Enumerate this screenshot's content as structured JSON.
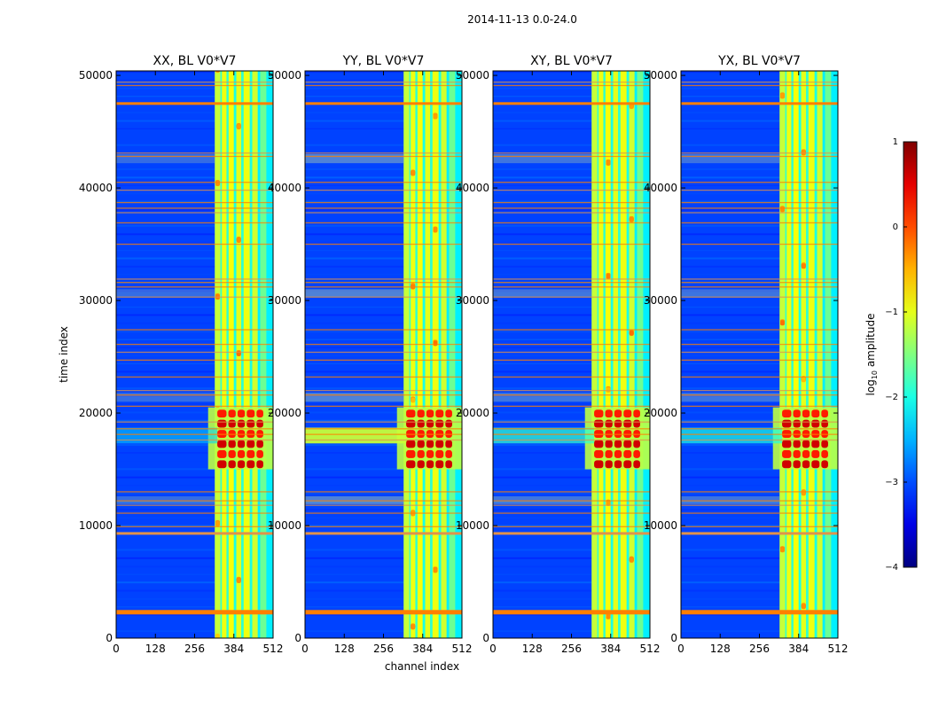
{
  "chart_data": {
    "type": "heatmap",
    "suptitle": "2014-11-13 0.0-24.0",
    "xlabel": "channel index",
    "ylabel": "time index",
    "xlim": [
      0,
      512
    ],
    "ylim": [
      0,
      50400
    ],
    "x_ticks": [
      "0",
      "128",
      "256",
      "384",
      "512"
    ],
    "y_ticks": [
      "0",
      "10000",
      "20000",
      "30000",
      "40000",
      "50000"
    ],
    "x_tick_values": [
      0,
      128,
      256,
      384,
      512
    ],
    "y_tick_values": [
      0,
      10000,
      20000,
      30000,
      40000,
      50000
    ],
    "panels": [
      {
        "name": "XX",
        "title": "XX, BL V0*V7",
        "low_band_strength": 0.35
      },
      {
        "name": "YY",
        "title": "YY, BL V0*V7",
        "low_band_strength": 1.0
      },
      {
        "name": "XY",
        "title": "XY, BL V0*V7",
        "low_band_strength": 0.6
      },
      {
        "name": "YX",
        "title": "YX, BL V0*V7",
        "low_band_strength": 0.55
      }
    ],
    "active_channel_range": [
      322,
      512
    ],
    "bright_time_range": [
      15000,
      20500
    ],
    "horizontal_flag_lines": [
      2300,
      9300,
      9900,
      11100,
      11800,
      12200,
      13000,
      17600,
      18100,
      18600,
      19200,
      20600,
      21600,
      22000,
      23200,
      24700,
      25400,
      26100,
      27400,
      30300,
      31200,
      31600,
      31900,
      35000,
      36900,
      37800,
      38200,
      38700,
      39800,
      40500,
      42800,
      43100,
      47500,
      49100,
      49400
    ],
    "colorbar": {
      "label": "log10 amplitude",
      "label_main": "log",
      "label_sub": "10",
      "label_rest": " amplitude",
      "min": -4,
      "max": 1,
      "ticks": [
        "1",
        "0",
        "−1",
        "−2",
        "−3",
        "−4"
      ],
      "tick_values": [
        1,
        0,
        -1,
        -2,
        -3,
        -4
      ],
      "colormap": "jet"
    }
  }
}
